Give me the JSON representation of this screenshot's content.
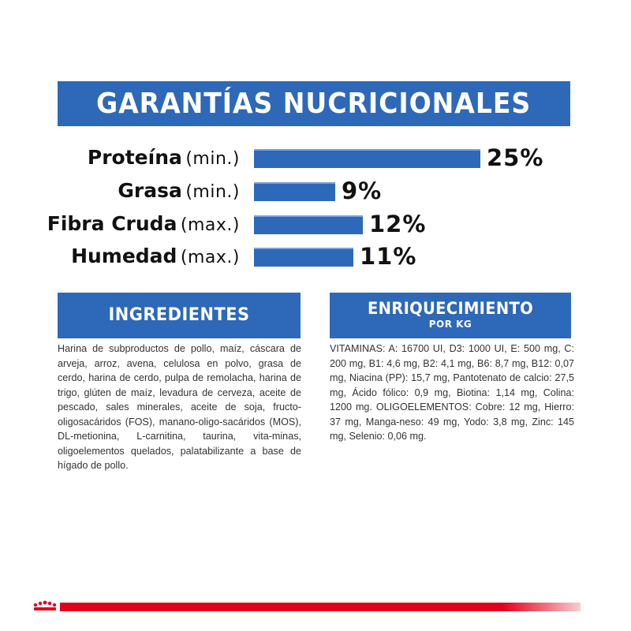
{
  "title": "GARANTÍAS NUCRICIONALES",
  "nutrients": [
    {
      "name": "Proteína",
      "qualifier": "(min.)",
      "value": "25%",
      "percent": 25
    },
    {
      "name": "Grasa",
      "qualifier": "(min.)",
      "value": "9%",
      "percent": 9
    },
    {
      "name": "Fibra Cruda",
      "qualifier": "(max.)",
      "value": "12%",
      "percent": 12
    },
    {
      "name": "Humedad",
      "qualifier": "(max.)",
      "value": "11%",
      "percent": 11
    }
  ],
  "ingredients": {
    "heading": "INGREDIENTES",
    "text": "Harina de subproductos de pollo, maíz, cáscara de arveja, arroz, avena, celulosa en polvo, grasa de cerdo, harina de cerdo, pulpa de remolacha, harina de trigo, glúten de maíz, levadura de cerveza, aceite de pescado, sales minerales, aceite de soja, fructo-oligosacáridos (FOS), manano-oligo-sacáridos (MOS), DL-metionina, L-carnitina, taurina, vita-minas, oligoelementos quelados, palatabilizante a base de hígado de pollo."
  },
  "enrichment": {
    "heading": "ENRIQUECIMIENTO",
    "subheading": "POR KG",
    "text": "VITAMINAS: A: 16700 UI, D3: 1000 UI, E: 500 mg, C: 200 mg, B1: 4,6 mg, B2: 4,1 mg, B6: 8,7 mg, B12: 0,07 mg, Niacina (PP): 15,7 mg, Pantotenato de calcio: 27,5 mg, Ácido fólico: 0,9 mg, Biotina: 1,14 mg, Colina: 1200 mg. OLIGOELEMENTOS: Cobre: 12 mg, Hierro: 37 mg, Manga-neso: 49 mg, Yodo: 3,8 mg, Zinc: 145 mg, Selenio: 0,06 mg."
  },
  "colors": {
    "accent": "#2e68b8",
    "brand_red": "#e1001a"
  },
  "icons": [
    "royal-canin-crown-icon"
  ]
}
